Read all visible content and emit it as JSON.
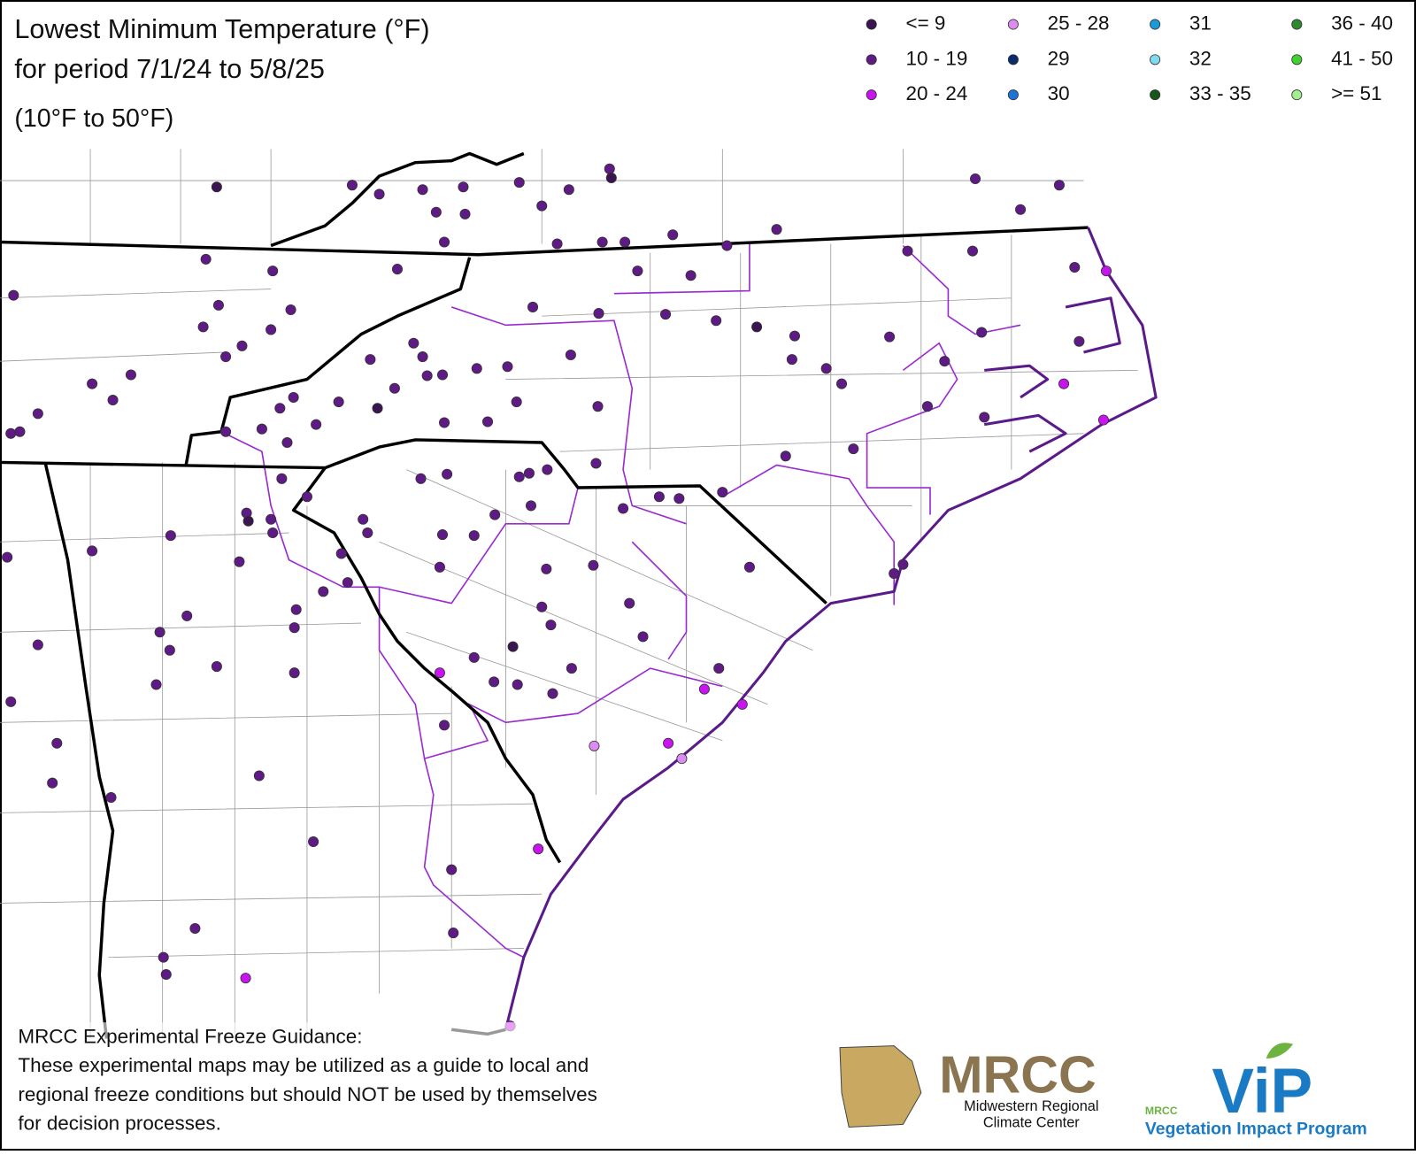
{
  "header": {
    "title": "Lowest Minimum Temperature (°F)",
    "period": "for period 7/1/24 to 5/8/25",
    "range": "(10°F to 50°F)"
  },
  "legend": {
    "items": [
      {
        "label": "<= 9",
        "color": "#3b1452"
      },
      {
        "label": "10 - 19",
        "color": "#5f1a86"
      },
      {
        "label": "20 - 24",
        "color": "#c913f0"
      },
      {
        "label": "25 - 28",
        "color": "#dc8cf0"
      },
      {
        "label": "29",
        "color": "#0b2a6e"
      },
      {
        "label": "30",
        "color": "#1e73d6"
      },
      {
        "label": "31",
        "color": "#1a9bd8"
      },
      {
        "label": "32",
        "color": "#7fdaf2"
      },
      {
        "label": "33 - 35",
        "color": "#17561a"
      },
      {
        "label": "36 - 40",
        "color": "#2d8a2d"
      },
      {
        "label": "41 - 50",
        "color": "#3fd12e"
      },
      {
        "label": ">= 51",
        "color": "#a3ee8e"
      }
    ]
  },
  "footer": {
    "heading": "MRCC Experimental Freeze Guidance:",
    "lines": [
      "These experimental maps may be utilized as a guide to local and",
      "regional freeze conditions but should NOT be used by themselves",
      "for decision processes."
    ]
  },
  "logos": {
    "mrcc": {
      "name": "MRCC",
      "line1": "Midwestern Regional",
      "line2": "Climate Center"
    },
    "vip": {
      "small": "MRCC",
      "name": "ViP",
      "caption": "Vegetation Impact Program"
    }
  }
}
